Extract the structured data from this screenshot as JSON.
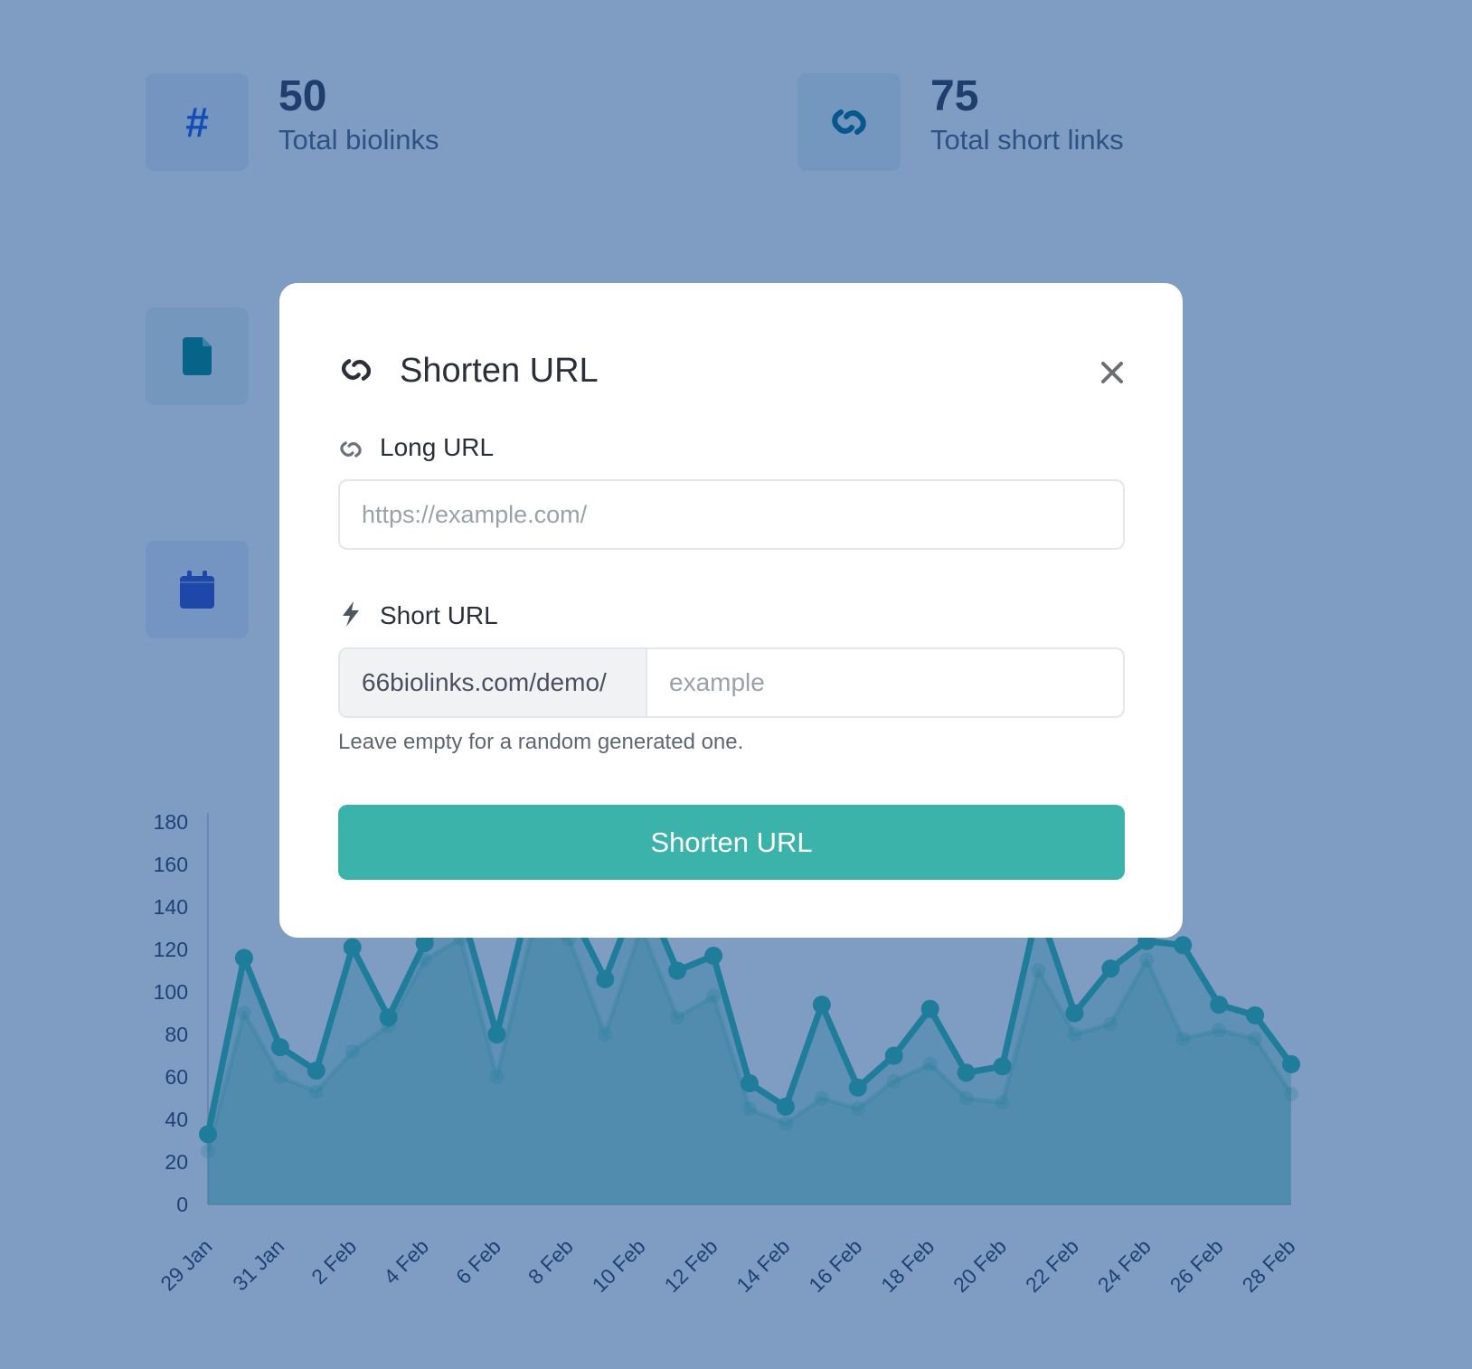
{
  "stats": [
    {
      "value": "50",
      "label": "Total biolinks",
      "icon": "hash-icon",
      "color": "#2563eb"
    },
    {
      "value": "75",
      "label": "Total short links",
      "icon": "link-icon",
      "color": "#0e7490"
    }
  ],
  "side_icons": [
    {
      "icon": "file-icon",
      "color": "#0f8f8a"
    },
    {
      "icon": "calendar-icon",
      "color": "#3b55c9"
    }
  ],
  "modal": {
    "title": "Shorten URL",
    "long_url_label": "Long URL",
    "long_url_placeholder": "https://example.com/",
    "short_url_label": "Short URL",
    "short_url_prefix": "66biolinks.com/demo/",
    "short_url_placeholder": "example",
    "help_text": "Leave empty for a random generated one.",
    "submit_label": "Shorten URL",
    "accent": "#3bb3aa"
  },
  "chart_data": {
    "type": "area",
    "x": [
      "29 Jan",
      "30 Jan",
      "31 Jan",
      "1 Feb",
      "2 Feb",
      "3 Feb",
      "4 Feb",
      "5 Feb",
      "6 Feb",
      "7 Feb",
      "8 Feb",
      "9 Feb",
      "10 Feb",
      "11 Feb",
      "12 Feb",
      "13 Feb",
      "14 Feb",
      "15 Feb",
      "16 Feb",
      "17 Feb",
      "18 Feb",
      "19 Feb",
      "20 Feb",
      "21 Feb",
      "22 Feb",
      "23 Feb",
      "24 Feb",
      "25 Feb",
      "26 Feb",
      "27 Feb",
      "28 Feb"
    ],
    "x_tick_labels": [
      "29 Jan",
      "31 Jan",
      "2 Feb",
      "4 Feb",
      "6 Feb",
      "8 Feb",
      "10 Feb",
      "12 Feb",
      "14 Feb",
      "16 Feb",
      "18 Feb",
      "20 Feb",
      "22 Feb",
      "24 Feb",
      "26 Feb",
      "28 Feb"
    ],
    "series": [
      {
        "values": [
          33,
          116,
          74,
          63,
          121,
          88,
          123,
          140,
          80,
          150,
          140,
          106,
          150,
          110,
          117,
          57,
          46,
          94,
          55,
          70,
          92,
          62,
          65,
          140,
          90,
          111,
          124,
          122,
          94,
          89,
          66
        ],
        "color": "#3ebeac"
      },
      {
        "values": [
          25,
          90,
          60,
          53,
          72,
          84,
          115,
          125,
          60,
          130,
          125,
          80,
          130,
          88,
          98,
          45,
          38,
          50,
          45,
          58,
          66,
          50,
          48,
          110,
          80,
          85,
          115,
          78,
          82,
          78,
          52
        ],
        "color": "#3ebeac"
      }
    ],
    "y_ticks": [
      0,
      20,
      40,
      60,
      80,
      100,
      120,
      140,
      160,
      180
    ],
    "ylim": [
      0,
      180
    ],
    "grid": false,
    "legend": "none"
  }
}
